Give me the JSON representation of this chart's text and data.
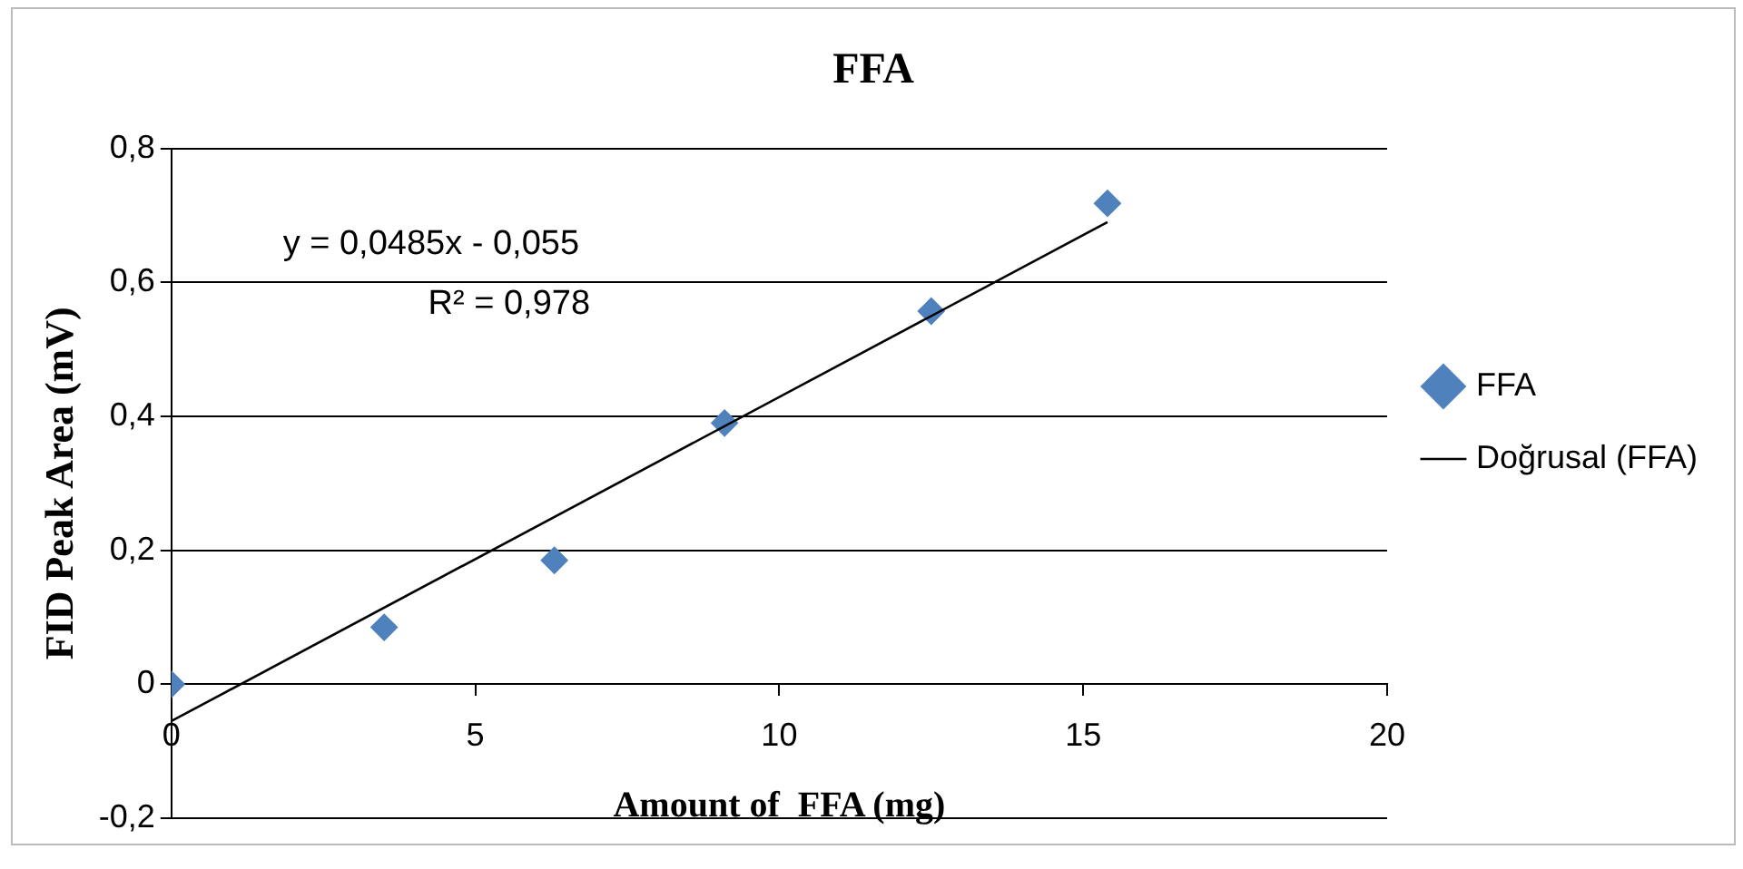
{
  "chart_data": {
    "type": "scatter",
    "title": "FFA",
    "xlabel": "Amount of  FFA (mg)",
    "ylabel": "FID Peak Area (mV)",
    "series": [
      {
        "name": "FFA",
        "marker": "diamond",
        "color": "#4f81bd",
        "x": [
          0,
          3.5,
          6.3,
          9.1,
          12.5,
          15.4
        ],
        "values": [
          0,
          0.085,
          0.185,
          0.39,
          0.557,
          0.718
        ]
      },
      {
        "name": "Doğrusal (FFA)",
        "type": "line",
        "marker": "none",
        "color": "#000000",
        "x": [
          0,
          15.4
        ],
        "values": [
          -0.055,
          0.69
        ]
      }
    ],
    "xlim": [
      0,
      20
    ],
    "xticks": [
      0,
      5,
      10,
      15,
      20
    ],
    "ylim": [
      -0.2,
      0.8
    ],
    "yticks": [
      {
        "value": -0.2,
        "label": "-0,2"
      },
      0,
      {
        "value": 0.2,
        "label": "0,2"
      },
      {
        "value": 0.4,
        "label": "0,4"
      },
      {
        "value": 0.6,
        "label": "0,6"
      },
      {
        "value": 0.8,
        "label": "0,8"
      }
    ],
    "annotations": [
      "y = 0,0485x - 0,055",
      "R² = 0,978"
    ],
    "grid": "y",
    "legend": "right",
    "line_style": "solid"
  }
}
